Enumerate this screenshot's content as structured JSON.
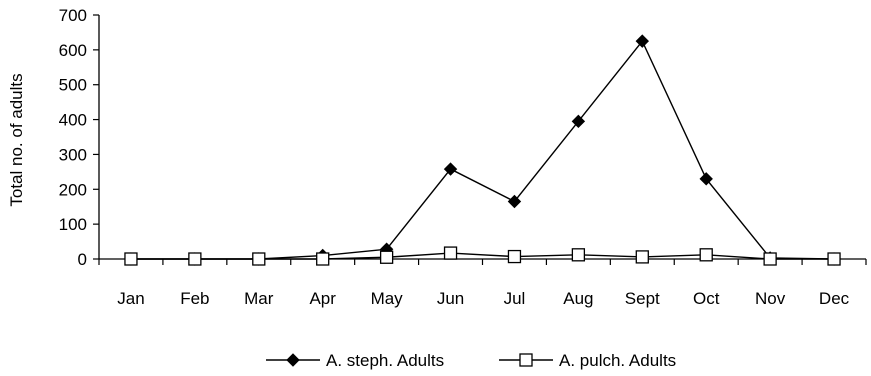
{
  "chart_data": {
    "type": "line",
    "title": "",
    "xlabel": "",
    "ylabel": "Total no. of adults",
    "categories": [
      "Jan",
      "Feb",
      "Mar",
      "Apr",
      "May",
      "Jun",
      "Jul",
      "Aug",
      "Sept",
      "Oct",
      "Nov",
      "Dec"
    ],
    "ylim": [
      0,
      700
    ],
    "yticks": [
      "0",
      "100",
      "200",
      "300",
      "400",
      "500",
      "600",
      "700"
    ],
    "grid": false,
    "legend_position": "bottom",
    "series": [
      {
        "name": "A. steph. Adults",
        "marker": "filled-diamond",
        "color": "#000000",
        "values": [
          0,
          0,
          0,
          10,
          28,
          258,
          165,
          395,
          625,
          230,
          3,
          0
        ]
      },
      {
        "name": "A. pulch. Adults",
        "marker": "open-square",
        "color": "#000000",
        "values": [
          0,
          0,
          0,
          0,
          5,
          17,
          7,
          12,
          6,
          12,
          0,
          0
        ]
      }
    ]
  }
}
